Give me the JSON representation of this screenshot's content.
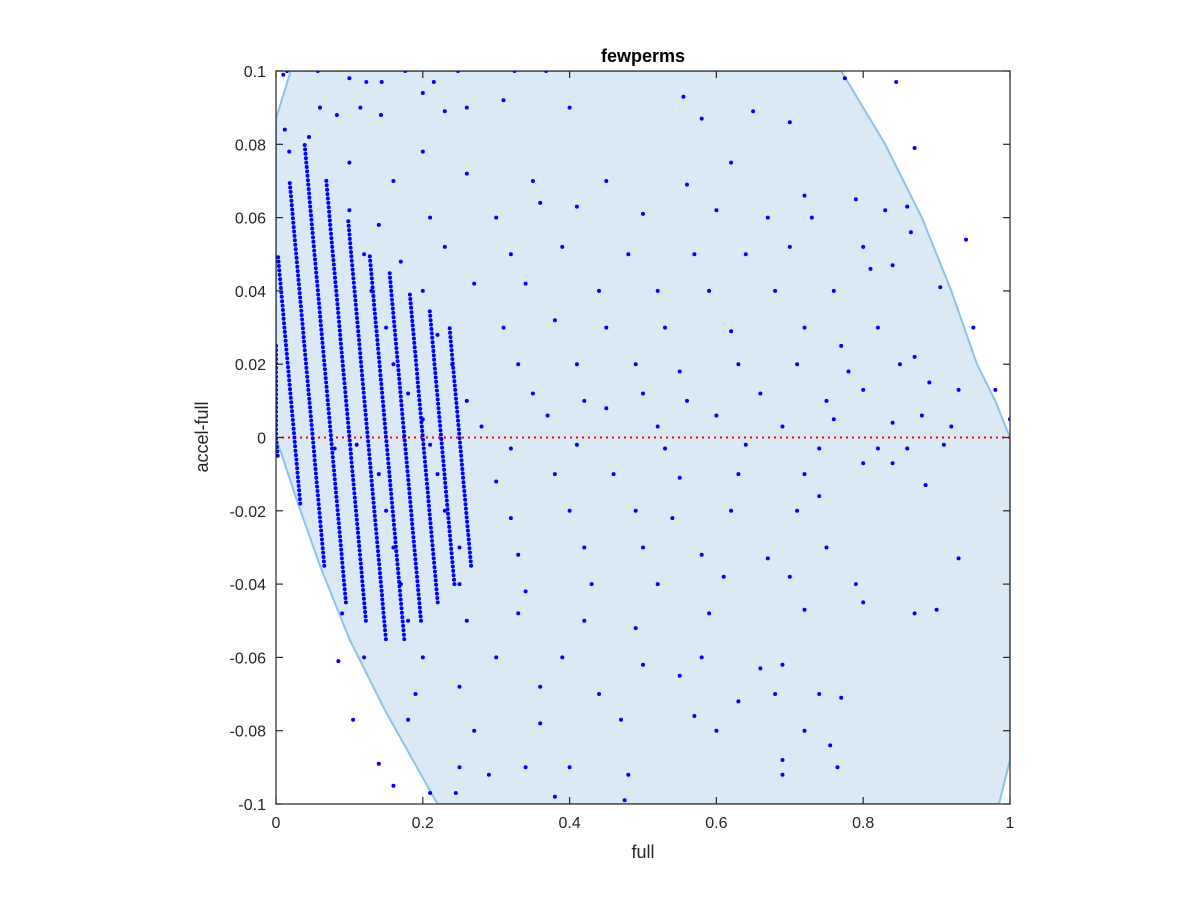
{
  "chart_data": {
    "type": "scatter",
    "title": "fewperms",
    "xlabel": "full",
    "ylabel": "accel-full",
    "xlim": [
      0,
      1
    ],
    "ylim": [
      -0.1,
      0.1
    ],
    "xticks": [
      0,
      0.2,
      0.4,
      0.6,
      0.8,
      1
    ],
    "xtick_labels": [
      "0",
      "0.2",
      "0.4",
      "0.6",
      "0.8",
      "1"
    ],
    "yticks": [
      -0.1,
      -0.08,
      -0.06,
      -0.04,
      -0.02,
      0,
      0.02,
      0.04,
      0.06,
      0.08,
      0.1
    ],
    "ytick_labels": [
      "-0.1",
      "-0.08",
      "-0.06",
      "-0.04",
      "-0.02",
      "0",
      "0.02",
      "0.04",
      "0.06",
      "0.08",
      "0.1"
    ],
    "grid": false,
    "reference_line": {
      "y": 0,
      "style": "dotted",
      "color": "#ff0000"
    },
    "region": {
      "fill_color": "#dae9f4",
      "edge_color": "#8ec3e6",
      "boundary": [
        [
          0.02,
          0.1
        ],
        [
          0.77,
          0.1
        ],
        [
          0.83,
          0.08
        ],
        [
          0.88,
          0.06
        ],
        [
          0.92,
          0.04
        ],
        [
          0.955,
          0.02
        ],
        [
          0.98,
          0.01
        ],
        [
          1.0,
          0.0
        ],
        [
          1.0,
          -0.088
        ],
        [
          0.985,
          -0.1
        ],
        [
          0.22,
          -0.1
        ],
        [
          0.15,
          -0.075
        ],
        [
          0.1,
          -0.055
        ],
        [
          0.06,
          -0.035
        ],
        [
          0.03,
          -0.018
        ],
        [
          0.0,
          0.0
        ],
        [
          0.0,
          0.087
        ]
      ]
    },
    "series": [
      {
        "color": "#0000ff",
        "marker_radius": 2,
        "points": [
          [
            0.01,
            0.099
          ],
          [
            0.015,
            0.1
          ],
          [
            0.057,
            0.1
          ],
          [
            0.1,
            0.098
          ],
          [
            0.123,
            0.097
          ],
          [
            0.144,
            0.097
          ],
          [
            0.176,
            0.1
          ],
          [
            0.215,
            0.097
          ],
          [
            0.248,
            0.1
          ],
          [
            0.325,
            0.1
          ],
          [
            0.368,
            0.1
          ],
          [
            0.012,
            0.084
          ],
          [
            0.018,
            0.078
          ],
          [
            0.045,
            0.082
          ],
          [
            0.06,
            0.09
          ],
          [
            0.083,
            0.088
          ],
          [
            0.115,
            0.09
          ],
          [
            0.143,
            0.088
          ],
          [
            0.2,
            0.094
          ],
          [
            0.23,
            0.089
          ],
          [
            0.26,
            0.09
          ],
          [
            0.31,
            0.092
          ],
          [
            0.4,
            0.09
          ],
          [
            0.58,
            0.087
          ],
          [
            0.65,
            0.089
          ],
          [
            0.7,
            0.086
          ],
          [
            0.1,
            0.075
          ],
          [
            0.16,
            0.07
          ],
          [
            0.2,
            0.078
          ],
          [
            0.26,
            0.072
          ],
          [
            0.35,
            0.07
          ],
          [
            0.45,
            0.07
          ],
          [
            0.56,
            0.069
          ],
          [
            0.62,
            0.075
          ],
          [
            0.72,
            0.066
          ],
          [
            0.79,
            0.065
          ],
          [
            0.83,
            0.062
          ],
          [
            0.1,
            0.062
          ],
          [
            0.14,
            0.058
          ],
          [
            0.21,
            0.06
          ],
          [
            0.3,
            0.06
          ],
          [
            0.36,
            0.064
          ],
          [
            0.41,
            0.063
          ],
          [
            0.5,
            0.061
          ],
          [
            0.6,
            0.062
          ],
          [
            0.67,
            0.06
          ],
          [
            0.73,
            0.06
          ],
          [
            0.12,
            0.05
          ],
          [
            0.17,
            0.048
          ],
          [
            0.23,
            0.052
          ],
          [
            0.32,
            0.05
          ],
          [
            0.39,
            0.052
          ],
          [
            0.48,
            0.05
          ],
          [
            0.57,
            0.05
          ],
          [
            0.64,
            0.05
          ],
          [
            0.7,
            0.052
          ],
          [
            0.8,
            0.052
          ],
          [
            0.84,
            0.047
          ],
          [
            0.13,
            0.04
          ],
          [
            0.2,
            0.04
          ],
          [
            0.27,
            0.042
          ],
          [
            0.34,
            0.042
          ],
          [
            0.44,
            0.04
          ],
          [
            0.52,
            0.04
          ],
          [
            0.59,
            0.04
          ],
          [
            0.68,
            0.04
          ],
          [
            0.76,
            0.04
          ],
          [
            0.81,
            0.046
          ],
          [
            0.905,
            0.041
          ],
          [
            0.15,
            0.03
          ],
          [
            0.22,
            0.028
          ],
          [
            0.31,
            0.03
          ],
          [
            0.38,
            0.032
          ],
          [
            0.45,
            0.03
          ],
          [
            0.53,
            0.03
          ],
          [
            0.62,
            0.029
          ],
          [
            0.72,
            0.03
          ],
          [
            0.77,
            0.025
          ],
          [
            0.82,
            0.03
          ],
          [
            0.95,
            0.03
          ],
          [
            0.16,
            0.02
          ],
          [
            0.24,
            0.02
          ],
          [
            0.33,
            0.02
          ],
          [
            0.41,
            0.02
          ],
          [
            0.49,
            0.02
          ],
          [
            0.55,
            0.018
          ],
          [
            0.63,
            0.02
          ],
          [
            0.71,
            0.02
          ],
          [
            0.78,
            0.018
          ],
          [
            0.85,
            0.02
          ],
          [
            0.87,
            0.022
          ],
          [
            0.18,
            0.012
          ],
          [
            0.26,
            0.01
          ],
          [
            0.35,
            0.012
          ],
          [
            0.42,
            0.01
          ],
          [
            0.5,
            0.012
          ],
          [
            0.56,
            0.01
          ],
          [
            0.66,
            0.012
          ],
          [
            0.75,
            0.01
          ],
          [
            0.8,
            0.013
          ],
          [
            0.89,
            0.015
          ],
          [
            0.93,
            0.013
          ],
          [
            0.98,
            0.013
          ],
          [
            0.2,
            0.005
          ],
          [
            0.28,
            0.003
          ],
          [
            0.37,
            0.006
          ],
          [
            0.45,
            0.008
          ],
          [
            0.52,
            0.003
          ],
          [
            0.6,
            0.006
          ],
          [
            0.69,
            0.003
          ],
          [
            0.76,
            0.005
          ],
          [
            0.84,
            0.004
          ],
          [
            0.88,
            0.006
          ],
          [
            0.92,
            0.003
          ],
          [
            1.0,
            0.005
          ],
          [
            0.08,
            -0.003
          ],
          [
            0.11,
            -0.002
          ],
          [
            0.21,
            -0.002
          ],
          [
            0.32,
            -0.003
          ],
          [
            0.41,
            -0.002
          ],
          [
            0.53,
            -0.003
          ],
          [
            0.64,
            -0.002
          ],
          [
            0.74,
            -0.003
          ],
          [
            0.82,
            -0.003
          ],
          [
            0.86,
            -0.003
          ],
          [
            0.91,
            -0.002
          ],
          [
            0.14,
            -0.01
          ],
          [
            0.22,
            -0.01
          ],
          [
            0.3,
            -0.012
          ],
          [
            0.38,
            -0.01
          ],
          [
            0.46,
            -0.01
          ],
          [
            0.55,
            -0.011
          ],
          [
            0.63,
            -0.01
          ],
          [
            0.72,
            -0.01
          ],
          [
            0.8,
            -0.007
          ],
          [
            0.84,
            -0.007
          ],
          [
            0.885,
            -0.013
          ],
          [
            0.15,
            -0.02
          ],
          [
            0.23,
            -0.02
          ],
          [
            0.32,
            -0.022
          ],
          [
            0.4,
            -0.02
          ],
          [
            0.49,
            -0.02
          ],
          [
            0.54,
            -0.022
          ],
          [
            0.62,
            -0.02
          ],
          [
            0.71,
            -0.02
          ],
          [
            0.74,
            -0.016
          ],
          [
            0.16,
            -0.03
          ],
          [
            0.25,
            -0.03
          ],
          [
            0.33,
            -0.032
          ],
          [
            0.42,
            -0.03
          ],
          [
            0.5,
            -0.03
          ],
          [
            0.58,
            -0.032
          ],
          [
            0.67,
            -0.033
          ],
          [
            0.75,
            -0.03
          ],
          [
            0.93,
            -0.033
          ],
          [
            0.17,
            -0.04
          ],
          [
            0.25,
            -0.04
          ],
          [
            0.34,
            -0.042
          ],
          [
            0.43,
            -0.04
          ],
          [
            0.52,
            -0.04
          ],
          [
            0.61,
            -0.038
          ],
          [
            0.7,
            -0.038
          ],
          [
            0.79,
            -0.04
          ],
          [
            0.09,
            -0.048
          ],
          [
            0.18,
            -0.05
          ],
          [
            0.26,
            -0.05
          ],
          [
            0.33,
            -0.048
          ],
          [
            0.42,
            -0.05
          ],
          [
            0.49,
            -0.052
          ],
          [
            0.59,
            -0.048
          ],
          [
            0.72,
            -0.047
          ],
          [
            0.8,
            -0.045
          ],
          [
            0.87,
            -0.048
          ],
          [
            0.9,
            -0.047
          ],
          [
            0.12,
            -0.06
          ],
          [
            0.2,
            -0.06
          ],
          [
            0.3,
            -0.06
          ],
          [
            0.39,
            -0.06
          ],
          [
            0.5,
            -0.062
          ],
          [
            0.58,
            -0.06
          ],
          [
            0.66,
            -0.063
          ],
          [
            0.69,
            -0.062
          ],
          [
            0.085,
            -0.061
          ],
          [
            0.19,
            -0.07
          ],
          [
            0.25,
            -0.068
          ],
          [
            0.36,
            -0.068
          ],
          [
            0.44,
            -0.07
          ],
          [
            0.55,
            -0.065
          ],
          [
            0.63,
            -0.072
          ],
          [
            0.68,
            -0.07
          ],
          [
            0.74,
            -0.07
          ],
          [
            0.77,
            -0.071
          ],
          [
            0.105,
            -0.077
          ],
          [
            0.18,
            -0.077
          ],
          [
            0.27,
            -0.08
          ],
          [
            0.36,
            -0.078
          ],
          [
            0.47,
            -0.077
          ],
          [
            0.57,
            -0.076
          ],
          [
            0.6,
            -0.08
          ],
          [
            0.72,
            -0.08
          ],
          [
            0.14,
            -0.089
          ],
          [
            0.25,
            -0.09
          ],
          [
            0.29,
            -0.092
          ],
          [
            0.34,
            -0.09
          ],
          [
            0.4,
            -0.09
          ],
          [
            0.48,
            -0.092
          ],
          [
            0.69,
            -0.088
          ],
          [
            0.755,
            -0.084
          ],
          [
            0.16,
            -0.095
          ],
          [
            0.21,
            -0.097
          ],
          [
            0.245,
            -0.097
          ],
          [
            0.38,
            -0.098
          ],
          [
            0.475,
            -0.099
          ],
          [
            0.69,
            -0.092
          ],
          [
            0.765,
            -0.09
          ],
          [
            0.845,
            0.097
          ],
          [
            0.87,
            0.079
          ],
          [
            0.94,
            0.054
          ],
          [
            0.865,
            0.056
          ],
          [
            0.86,
            0.063
          ],
          [
            0.775,
            0.098
          ],
          [
            0.555,
            0.093
          ]
        ],
        "bands": [
          {
            "x0": 0.0,
            "dxdy": -0.45,
            "y_from": -0.005,
            "y_to": 0.025
          },
          {
            "x0": 0.025,
            "dxdy": -0.45,
            "y_from": -0.018,
            "y_to": 0.05
          },
          {
            "x0": 0.05,
            "dxdy": -0.45,
            "y_from": -0.035,
            "y_to": 0.07
          },
          {
            "x0": 0.075,
            "dxdy": -0.45,
            "y_from": -0.045,
            "y_to": 0.08
          },
          {
            "x0": 0.1,
            "dxdy": -0.45,
            "y_from": -0.05,
            "y_to": 0.07
          },
          {
            "x0": 0.125,
            "dxdy": -0.45,
            "y_from": -0.055,
            "y_to": 0.06
          },
          {
            "x0": 0.15,
            "dxdy": -0.45,
            "y_from": -0.055,
            "y_to": 0.05
          },
          {
            "x0": 0.175,
            "dxdy": -0.45,
            "y_from": -0.05,
            "y_to": 0.045
          },
          {
            "x0": 0.2,
            "dxdy": -0.45,
            "y_from": -0.045,
            "y_to": 0.04
          },
          {
            "x0": 0.225,
            "dxdy": -0.45,
            "y_from": -0.04,
            "y_to": 0.035
          },
          {
            "x0": 0.25,
            "dxdy": -0.45,
            "y_from": -0.035,
            "y_to": 0.03
          }
        ]
      }
    ]
  }
}
